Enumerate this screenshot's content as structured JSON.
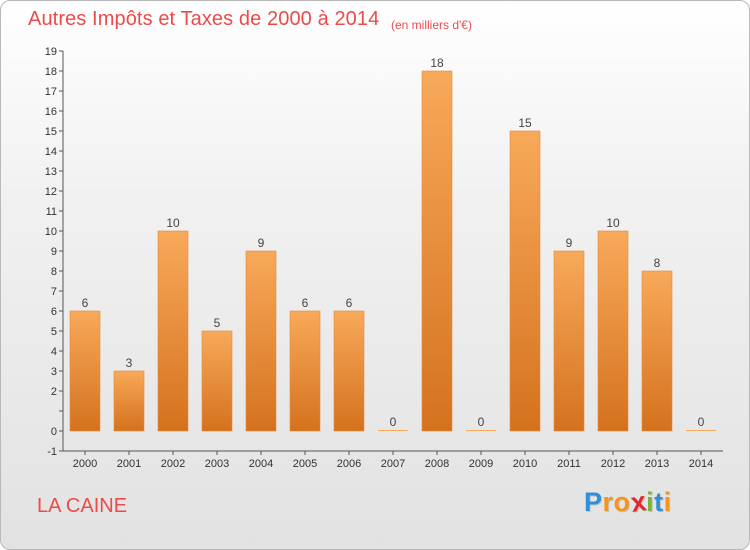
{
  "header": {
    "title": "Autres Impôts et Taxes de 2000 à 2014",
    "subtitle": "(en milliers d'€)"
  },
  "footer": {
    "commune": "LA CAINE",
    "logo_letters": [
      "P",
      "r",
      "o",
      "x",
      "i",
      "t",
      "i"
    ],
    "logo_colors": [
      "#2f8fd8",
      "#f6941d",
      "#f6941d",
      "#e8252a",
      "#7ab43c",
      "#2f8fd8",
      "#f6941d"
    ]
  },
  "colors": {
    "bar_top": "#f8a95a",
    "bar_bottom": "#d4721e",
    "axis": "#555555",
    "label": "#444444",
    "accent": "#ee4a4a"
  },
  "chart_data": {
    "type": "bar",
    "categories": [
      "2000",
      "2001",
      "2002",
      "2003",
      "2004",
      "2005",
      "2006",
      "2007",
      "2008",
      "2009",
      "2010",
      "2011",
      "2012",
      "2013",
      "2014"
    ],
    "values": [
      6,
      3,
      10,
      5,
      9,
      6,
      6,
      0,
      18,
      0,
      15,
      9,
      10,
      8,
      0
    ],
    "data_labels": [
      "6",
      "3",
      "10",
      "5",
      "9",
      "6",
      "6",
      "0",
      "18",
      "0",
      "15",
      "9",
      "10",
      "8",
      "0"
    ],
    "title": "Autres Impôts et Taxes de 2000 à 2014",
    "subtitle": "(en milliers d'€)",
    "ylim": [
      -1,
      19
    ],
    "yticks": [
      {
        "value": -1,
        "label": "-1"
      },
      {
        "value": 0,
        "label": "0"
      },
      {
        "value": 1,
        "label": ""
      },
      {
        "value": 2,
        "label": "2"
      },
      {
        "value": 3,
        "label": "3"
      },
      {
        "value": 4,
        "label": "4"
      },
      {
        "value": 5,
        "label": "5"
      },
      {
        "value": 6,
        "label": "6"
      },
      {
        "value": 7,
        "label": "7"
      },
      {
        "value": 8,
        "label": "8"
      },
      {
        "value": 9,
        "label": "9"
      },
      {
        "value": 10,
        "label": "10"
      },
      {
        "value": 11,
        "label": "11"
      },
      {
        "value": 12,
        "label": "12"
      },
      {
        "value": 13,
        "label": "13"
      },
      {
        "value": 14,
        "label": "14"
      },
      {
        "value": 15,
        "label": "15"
      },
      {
        "value": 16,
        "label": "16"
      },
      {
        "value": 17,
        "label": "17"
      },
      {
        "value": 18,
        "label": "18"
      },
      {
        "value": 19,
        "label": "19"
      }
    ],
    "grid": false,
    "legend": "none"
  }
}
